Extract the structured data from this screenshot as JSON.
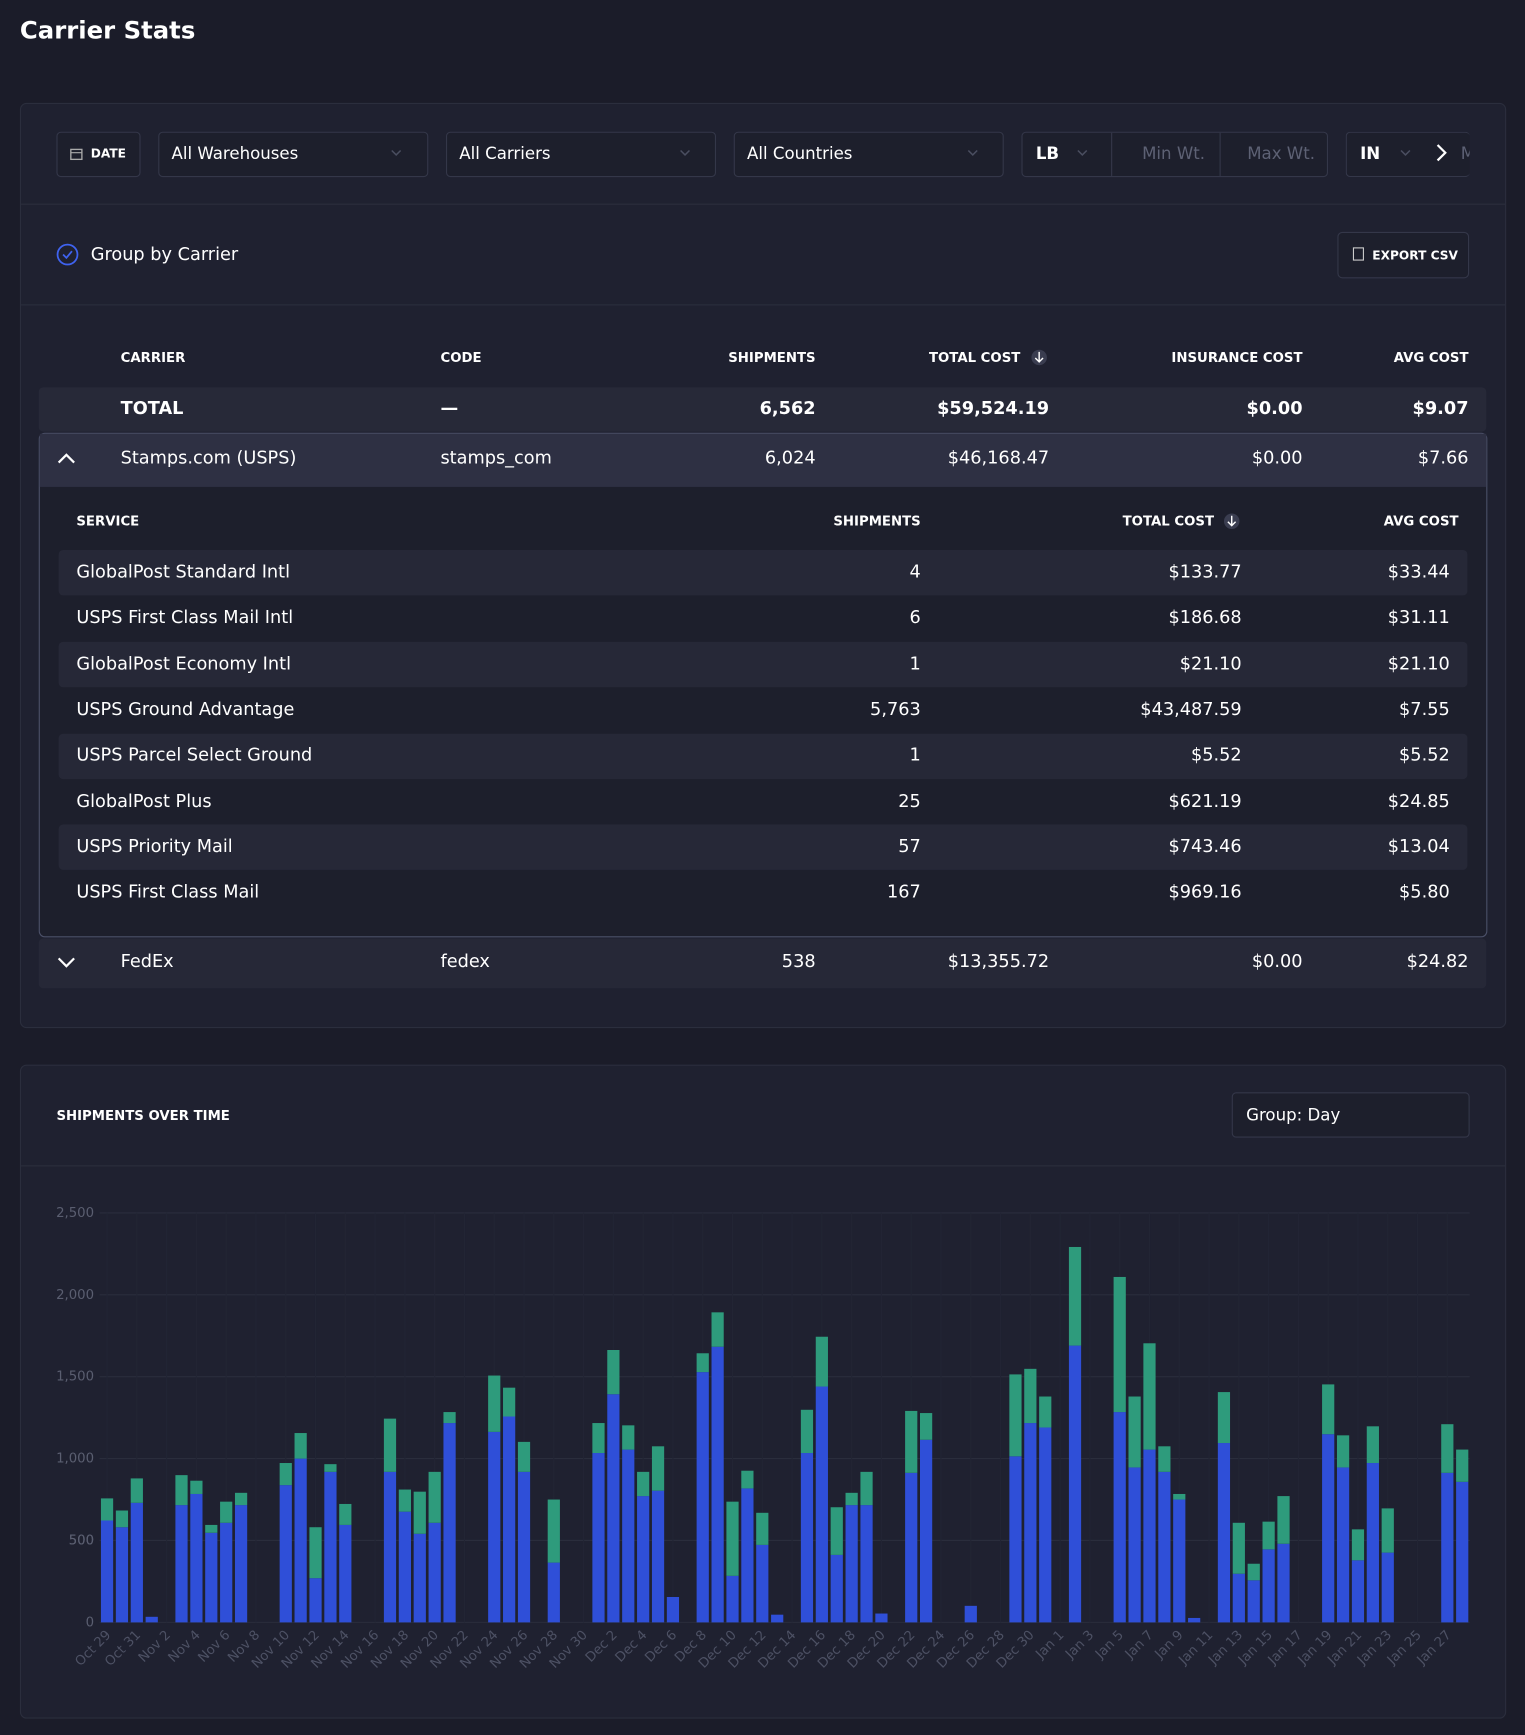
{
  "header": {
    "title": "Carrier Stats"
  },
  "filters": {
    "date": "DATE",
    "warehouse": "All Warehouses",
    "carrier": "All Carriers",
    "country": "All Countries",
    "weight_unit": "LB",
    "min_weight": "Min Wt.",
    "max_weight": "Max Wt.",
    "dim_unit": "IN",
    "next": "M"
  },
  "options": {
    "group_by": "Group by Carrier",
    "export": "EXPORT CSV"
  },
  "table": {
    "columns": [
      "CARRIER",
      "CODE",
      "SHIPMENTS",
      "TOTAL COST",
      "INSURANCE COST",
      "AVG COST"
    ],
    "total": [
      "TOTAL",
      "—",
      "6,562",
      "$59,524.19",
      "$0.00",
      "$9.07"
    ],
    "carriers": [
      {
        "cells": [
          "Stamps.com (USPS)",
          "stamps_com",
          "6,024",
          "$46,168.47",
          "$0.00",
          "$7.66"
        ],
        "services": {
          "columns": [
            "SERVICE",
            "SHIPMENTS",
            "TOTAL COST",
            "AVG COST"
          ],
          "rows": [
            [
              "GlobalPost Standard Intl",
              "4",
              "$133.77",
              "$33.44"
            ],
            [
              "USPS First Class Mail Intl",
              "6",
              "$186.68",
              "$31.11"
            ],
            [
              "GlobalPost Economy Intl",
              "1",
              "$21.10",
              "$21.10"
            ],
            [
              "USPS Ground Advantage",
              "5,763",
              "$43,487.59",
              "$7.55"
            ],
            [
              "USPS Parcel Select Ground",
              "1",
              "$5.52",
              "$5.52"
            ],
            [
              "GlobalPost Plus",
              "25",
              "$621.19",
              "$24.85"
            ],
            [
              "USPS Priority Mail",
              "57",
              "$743.46",
              "$13.04"
            ],
            [
              "USPS First Class Mail",
              "167",
              "$969.16",
              "$5.80"
            ]
          ]
        }
      },
      {
        "cells": [
          "FedEx",
          "fedex",
          "538",
          "$13,355.72",
          "$0.00",
          "$24.82"
        ]
      }
    ]
  },
  "chart_data": {
    "type": "bar",
    "stacked": true,
    "title": "SHIPMENTS OVER TIME",
    "group": "Group: Day",
    "grid": true,
    "categories": [
      "Oct 29",
      null,
      "Oct 31",
      null,
      "Nov 2",
      null,
      "Nov 4",
      null,
      "Nov 6",
      null,
      "Nov 8",
      null,
      "Nov 10",
      null,
      "Nov 12",
      null,
      "Nov 14",
      null,
      "Nov 16",
      null,
      "Nov 18",
      null,
      "Nov 20",
      null,
      "Nov 22",
      null,
      "Nov 24",
      null,
      "Nov 26",
      null,
      "Nov 28",
      null,
      "Nov 30",
      null,
      "Dec 2",
      null,
      "Dec 4",
      null,
      "Dec 6",
      null,
      "Dec 8",
      null,
      "Dec 10",
      null,
      "Dec 12",
      null,
      "Dec 14",
      null,
      "Dec 16",
      null,
      "Dec 18",
      null,
      "Dec 20",
      null,
      "Dec 22",
      null,
      "Dec 24",
      null,
      "Dec 26",
      null,
      "Dec 28",
      null,
      "Dec 30",
      null,
      "Jan 1",
      null,
      "Jan 3",
      null,
      "Jan 5",
      null,
      "Jan 7",
      null,
      "Jan 9",
      null,
      "Jan 11",
      null,
      "Jan 13",
      null,
      "Jan 15",
      null,
      "Jan 17",
      null,
      "Jan 19",
      null,
      "Jan 21",
      null,
      "Jan 23",
      null,
      "Jan 25",
      null,
      "Jan 27",
      null
    ],
    "series": [
      {
        "color": "#2f4fd8",
        "values": [
          622,
          581,
          730,
          34,
          0,
          716,
          784,
          547,
          608,
          716,
          0,
          0,
          838,
          1000,
          270,
          919,
          595,
          0,
          0,
          919,
          676,
          541,
          608,
          1217,
          0,
          0,
          1163,
          1257,
          919,
          0,
          365,
          0,
          0,
          1034,
          1393,
          1055,
          771,
          804,
          155,
          0,
          1528,
          1683,
          284,
          818,
          473,
          47,
          0,
          1034,
          1440,
          412,
          716,
          716,
          54,
          0,
          913,
          1115,
          0,
          0,
          101,
          0,
          0,
          1014,
          1217,
          1190,
          0,
          1690,
          0,
          0,
          1284,
          946,
          1055,
          919,
          750,
          27,
          0,
          1095,
          297,
          257,
          446,
          480,
          0,
          0,
          1149,
          946,
          379,
          973,
          426,
          0,
          0,
          0,
          913,
          858
        ]
      },
      {
        "color": "#2e9b7c",
        "values": [
          135,
          102,
          149,
          0,
          0,
          183,
          81,
          48,
          129,
          75,
          0,
          0,
          135,
          156,
          311,
          47,
          128,
          0,
          0,
          325,
          135,
          257,
          311,
          67,
          0,
          0,
          344,
          176,
          183,
          0,
          385,
          0,
          0,
          183,
          270,
          148,
          148,
          271,
          0,
          0,
          115,
          210,
          453,
          108,
          196,
          0,
          0,
          264,
          304,
          291,
          75,
          203,
          0,
          0,
          378,
          163,
          0,
          0,
          0,
          0,
          0,
          500,
          331,
          189,
          0,
          602,
          0,
          0,
          825,
          433,
          649,
          156,
          34,
          0,
          0,
          311,
          311,
          101,
          169,
          291,
          0,
          0,
          304,
          196,
          189,
          224,
          270,
          0,
          0,
          0,
          297,
          197
        ]
      }
    ],
    "ylim": [
      0,
      2500
    ],
    "yticks": [
      0,
      500,
      500,
      {
        "value": 1000,
        "label": "1,000"
      },
      {
        "value": 1500,
        "label": "1,500"
      },
      {
        "value": 2000,
        "label": "2,000"
      },
      {
        "value": 2500,
        "label": "2,500"
      }
    ]
  }
}
